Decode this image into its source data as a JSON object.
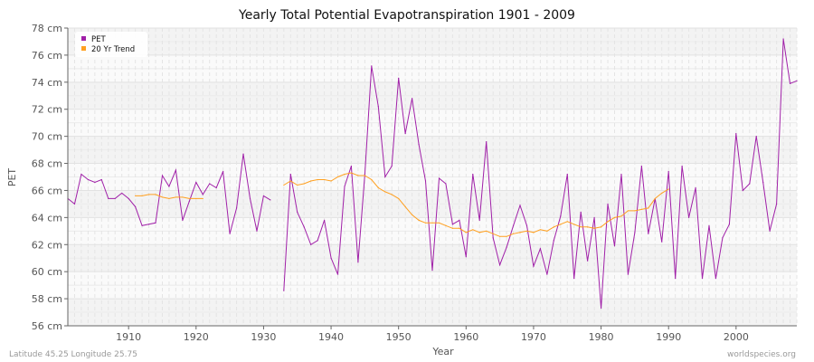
{
  "chart_data": {
    "type": "line",
    "title": "Yearly Total Potential Evapotranspiration 1901 - 2009",
    "xlabel": "Year",
    "ylabel": "PET",
    "xlim": [
      1901,
      2009
    ],
    "ylim": [
      56,
      78
    ],
    "x_ticks": [
      "1910",
      "1920",
      "1930",
      "1940",
      "1950",
      "1960",
      "1970",
      "1980",
      "1990",
      "2000"
    ],
    "y_ticks": [
      "56 cm",
      "58 cm",
      "60 cm",
      "62 cm",
      "64 cm",
      "66 cm",
      "68 cm",
      "70 cm",
      "72 cm",
      "74 cm",
      "76 cm",
      "78 cm"
    ],
    "grid": true,
    "legend_position": "top-left",
    "series": [
      {
        "name": "PET",
        "color": "#a020a8",
        "start_year": 1901,
        "values": [
          65.4,
          65.0,
          67.2,
          66.8,
          66.6,
          66.8,
          65.4,
          65.4,
          65.8,
          65.4,
          64.8,
          63.4,
          63.5,
          63.6,
          67.1,
          66.3,
          67.5,
          63.8,
          65.2,
          66.6,
          65.7,
          66.5,
          66.2,
          67.4,
          62.8,
          64.7,
          68.7,
          65.4,
          63.0,
          65.6,
          65.3,
          null,
          58.6,
          67.2,
          64.4,
          63.3,
          62.0,
          62.3,
          63.8,
          61.0,
          59.8,
          66.3,
          67.8,
          60.7,
          67.2,
          75.2,
          72.2,
          67.0,
          67.8,
          74.3,
          70.2,
          72.8,
          69.4,
          66.7,
          60.1,
          66.9,
          66.5,
          63.5,
          63.8,
          61.1,
          67.2,
          63.8,
          69.6,
          62.5,
          60.5,
          61.8,
          63.4,
          64.9,
          63.4,
          60.4,
          61.7,
          59.8,
          62.3,
          64.1,
          67.2,
          59.5,
          64.4,
          60.8,
          64.0,
          57.3,
          65.0,
          61.9,
          67.2,
          59.8,
          62.9,
          67.8,
          62.8,
          65.4,
          62.2,
          67.4,
          59.5,
          67.8,
          64.0,
          66.2,
          59.5,
          63.4,
          59.5,
          62.5,
          63.5,
          70.2,
          66.0,
          66.5,
          70.0,
          66.6,
          63.0,
          65.0,
          77.2,
          73.9,
          74.1
        ]
      },
      {
        "name": "20 Yr Trend",
        "color": "#ffa020",
        "start_year": 1911,
        "values": [
          65.6,
          65.6,
          65.7,
          65.7,
          65.5,
          65.4,
          65.5,
          65.5,
          65.4,
          65.4,
          65.4,
          null,
          null,
          null,
          null,
          null,
          null,
          null,
          null,
          null,
          null,
          null,
          66.4,
          66.7,
          66.4,
          66.5,
          66.7,
          66.8,
          66.8,
          66.7,
          67.0,
          67.2,
          67.3,
          67.1,
          67.1,
          66.8,
          66.2,
          65.9,
          65.7,
          65.4,
          64.8,
          64.2,
          63.8,
          63.6,
          63.6,
          63.6,
          63.4,
          63.2,
          63.2,
          62.9,
          63.1,
          62.9,
          63.0,
          62.8,
          62.6,
          62.6,
          62.8,
          62.9,
          63.0,
          62.9,
          63.1,
          63.0,
          63.3,
          63.5,
          63.7,
          63.5,
          63.3,
          63.3,
          63.2,
          63.3,
          63.7,
          64.0,
          64.1,
          64.5,
          64.5,
          64.6,
          64.7,
          65.4,
          65.8,
          66.1
        ]
      }
    ]
  },
  "footer": {
    "location": "Latitude 45.25 Longitude 25.75",
    "source": "worldspecies.org"
  }
}
